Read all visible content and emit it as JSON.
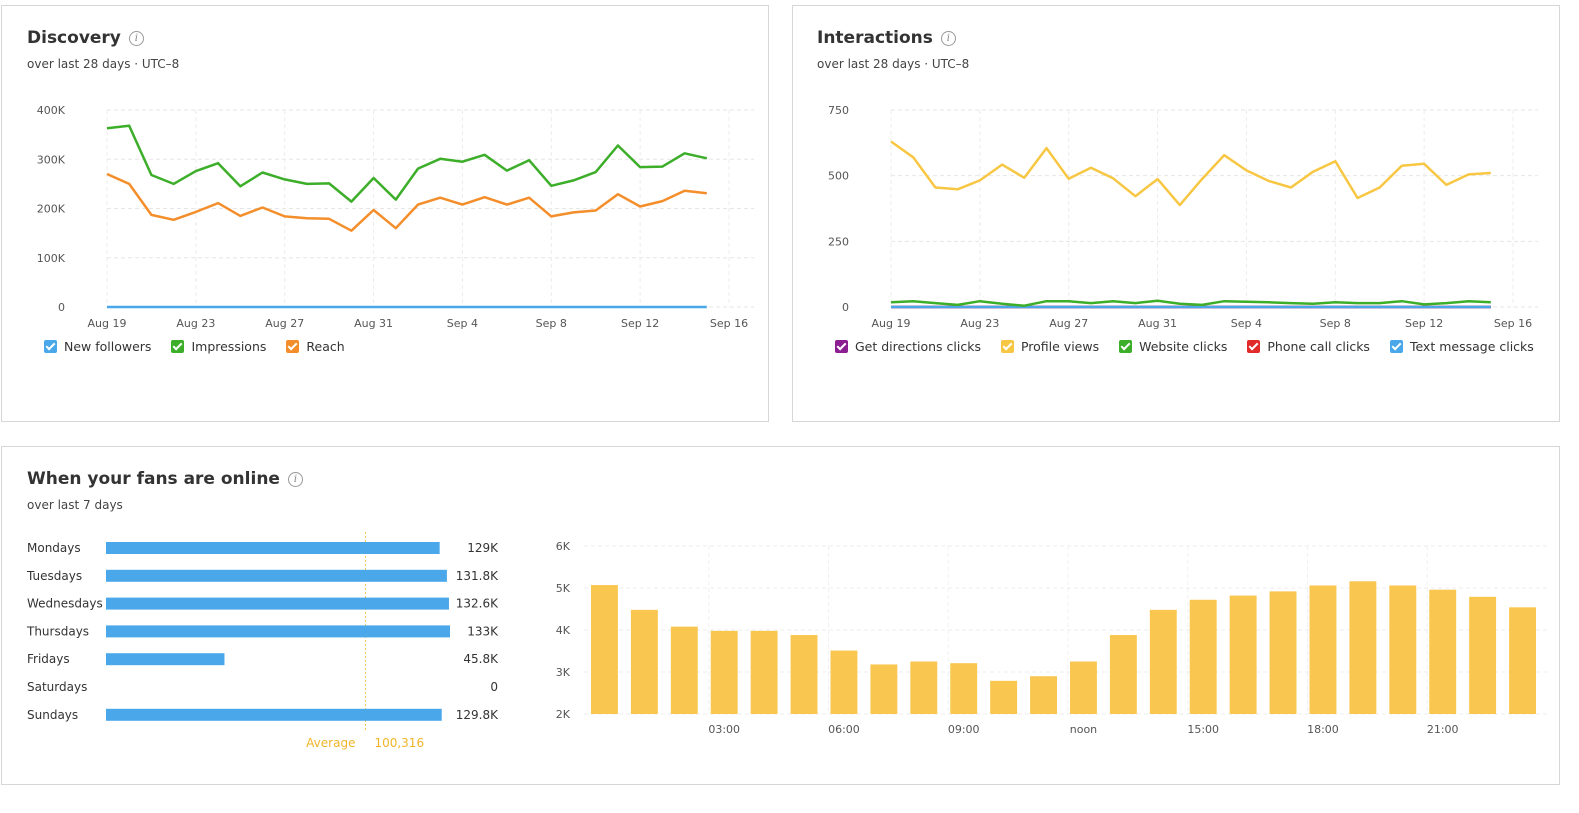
{
  "discovery": {
    "title": "Discovery",
    "subtitle": "over last 28 days · UTC–8",
    "legend": [
      {
        "label": "New followers",
        "color": "#4aa8ea"
      },
      {
        "label": "Impressions",
        "color": "#3cae29"
      },
      {
        "label": "Reach",
        "color": "#f38e2b"
      }
    ]
  },
  "interactions": {
    "title": "Interactions",
    "subtitle": "over last 28 days · UTC–8",
    "legend": [
      {
        "label": "Get directions clicks",
        "color": "#8b1f91"
      },
      {
        "label": "Profile views",
        "color": "#f7c744"
      },
      {
        "label": "Website clicks",
        "color": "#3cae29"
      },
      {
        "label": "Phone call clicks",
        "color": "#e12a2a"
      },
      {
        "label": "Text message clicks",
        "color": "#4aa8ea"
      }
    ]
  },
  "fans": {
    "title": "When your fans are online",
    "subtitle": "over last 7 days",
    "average_label": "Average",
    "average_value": "100,316"
  },
  "chart_data": [
    {
      "id": "discovery",
      "type": "line",
      "title": "Discovery",
      "x": [
        "Aug 19",
        "Aug 20",
        "Aug 21",
        "Aug 22",
        "Aug 23",
        "Aug 24",
        "Aug 25",
        "Aug 26",
        "Aug 27",
        "Aug 28",
        "Aug 29",
        "Aug 30",
        "Aug 31",
        "Sep 1",
        "Sep 2",
        "Sep 3",
        "Sep 4",
        "Sep 5",
        "Sep 6",
        "Sep 7",
        "Sep 8",
        "Sep 9",
        "Sep 10",
        "Sep 11",
        "Sep 12",
        "Sep 13",
        "Sep 14",
        "Sep 15"
      ],
      "x_ticks": [
        "Aug 19",
        "Aug 23",
        "Aug 27",
        "Aug 31",
        "Sep 4",
        "Sep 8",
        "Sep 12",
        "Sep 16"
      ],
      "y_ticks": [
        "0",
        "100K",
        "200K",
        "300K",
        "400K"
      ],
      "ylim": [
        0,
        400000
      ],
      "series": [
        {
          "name": "New followers",
          "color": "#4aa8ea",
          "values": [
            0,
            0,
            0,
            0,
            0,
            0,
            0,
            0,
            0,
            0,
            0,
            0,
            0,
            0,
            0,
            0,
            0,
            0,
            0,
            0,
            0,
            0,
            0,
            0,
            0,
            0,
            0,
            0
          ]
        },
        {
          "name": "Impressions",
          "color": "#3cae29",
          "values": [
            363000,
            368000,
            268000,
            250000,
            276000,
            292000,
            245000,
            273000,
            259000,
            250000,
            251000,
            214000,
            262000,
            218000,
            281000,
            301000,
            295000,
            309000,
            277000,
            298000,
            246000,
            257000,
            274000,
            328000,
            284000,
            285000,
            312000,
            302000
          ]
        },
        {
          "name": "Reach",
          "color": "#f38e2b",
          "values": [
            270000,
            250000,
            187000,
            177000,
            193000,
            211000,
            185000,
            202000,
            184000,
            180000,
            179000,
            155000,
            197000,
            160000,
            208000,
            222000,
            208000,
            223000,
            208000,
            222000,
            184000,
            192000,
            196000,
            229000,
            204000,
            215000,
            236000,
            231000
          ]
        }
      ],
      "grid": true,
      "legend_position": "bottom-left"
    },
    {
      "id": "interactions",
      "type": "line",
      "title": "Interactions",
      "x": [
        "Aug 19",
        "Aug 20",
        "Aug 21",
        "Aug 22",
        "Aug 23",
        "Aug 24",
        "Aug 25",
        "Aug 26",
        "Aug 27",
        "Aug 28",
        "Aug 29",
        "Aug 30",
        "Aug 31",
        "Sep 1",
        "Sep 2",
        "Sep 3",
        "Sep 4",
        "Sep 5",
        "Sep 6",
        "Sep 7",
        "Sep 8",
        "Sep 9",
        "Sep 10",
        "Sep 11",
        "Sep 12",
        "Sep 13",
        "Sep 14",
        "Sep 15"
      ],
      "x_ticks": [
        "Aug 19",
        "Aug 23",
        "Aug 27",
        "Aug 31",
        "Sep 4",
        "Sep 8",
        "Sep 12",
        "Sep 16"
      ],
      "y_ticks": [
        "0",
        "250",
        "500",
        "750"
      ],
      "ylim": [
        0,
        750
      ],
      "series": [
        {
          "name": "Get directions clicks",
          "color": "#8b1f91",
          "values": [
            0,
            0,
            0,
            0,
            0,
            0,
            0,
            0,
            0,
            0,
            0,
            0,
            0,
            0,
            0,
            0,
            0,
            0,
            0,
            0,
            0,
            0,
            0,
            0,
            0,
            0,
            0,
            0
          ]
        },
        {
          "name": "Profile views",
          "color": "#f7c744",
          "values": [
            630,
            570,
            455,
            448,
            482,
            542,
            492,
            605,
            488,
            530,
            490,
            422,
            487,
            388,
            487,
            578,
            520,
            480,
            455,
            515,
            555,
            415,
            455,
            538,
            545,
            465,
            505,
            510
          ]
        },
        {
          "name": "Website clicks",
          "color": "#3cae29",
          "values": [
            18,
            22,
            15,
            8,
            22,
            12,
            5,
            22,
            22,
            15,
            22,
            15,
            24,
            12,
            8,
            22,
            20,
            18,
            15,
            12,
            18,
            15,
            15,
            22,
            10,
            15,
            22,
            18
          ]
        },
        {
          "name": "Phone call clicks",
          "color": "#e12a2a",
          "values": [
            0,
            0,
            0,
            0,
            0,
            0,
            0,
            0,
            0,
            0,
            0,
            0,
            0,
            0,
            0,
            0,
            0,
            0,
            0,
            0,
            0,
            0,
            0,
            0,
            0,
            0,
            0,
            0
          ]
        },
        {
          "name": "Text message clicks",
          "color": "#4aa8ea",
          "values": [
            0,
            0,
            0,
            0,
            0,
            0,
            0,
            0,
            0,
            0,
            0,
            0,
            0,
            0,
            0,
            0,
            0,
            0,
            0,
            0,
            0,
            0,
            0,
            0,
            0,
            0,
            0,
            0
          ]
        }
      ],
      "grid": true,
      "legend_position": "bottom-left"
    },
    {
      "id": "fans-days",
      "type": "bar",
      "orientation": "horizontal",
      "categories": [
        "Mondays",
        "Tuesdays",
        "Wednesdays",
        "Thursdays",
        "Fridays",
        "Saturdays",
        "Sundays"
      ],
      "values": [
        129000,
        131800,
        132600,
        133000,
        45800,
        0,
        129800
      ],
      "value_labels": [
        "129K",
        "131.8K",
        "132.6K",
        "133K",
        "45.8K",
        "0",
        "129.8K"
      ],
      "average": 100316,
      "color": "#4aa8ea",
      "xlim": [
        0,
        133000
      ]
    },
    {
      "id": "fans-hours",
      "type": "bar",
      "categories": [
        "00:00",
        "01:00",
        "02:00",
        "03:00",
        "04:00",
        "05:00",
        "06:00",
        "07:00",
        "08:00",
        "09:00",
        "10:00",
        "11:00",
        "noon",
        "13:00",
        "14:00",
        "15:00",
        "16:00",
        "17:00",
        "18:00",
        "19:00",
        "20:00",
        "21:00",
        "22:00",
        "23:00"
      ],
      "values": [
        5070,
        4480,
        4080,
        3980,
        3980,
        3880,
        3510,
        3180,
        3250,
        3210,
        2790,
        2900,
        3250,
        3880,
        4480,
        4720,
        4820,
        4920,
        5060,
        5160,
        5060,
        4960,
        4790,
        4540
      ],
      "x_ticks": [
        "03:00",
        "06:00",
        "09:00",
        "noon",
        "15:00",
        "18:00",
        "21:00"
      ],
      "y_ticks": [
        "2K",
        "3K",
        "4K",
        "5K",
        "6K"
      ],
      "ylim": [
        2000,
        6000
      ],
      "color": "#f9c74f",
      "grid": true
    }
  ]
}
